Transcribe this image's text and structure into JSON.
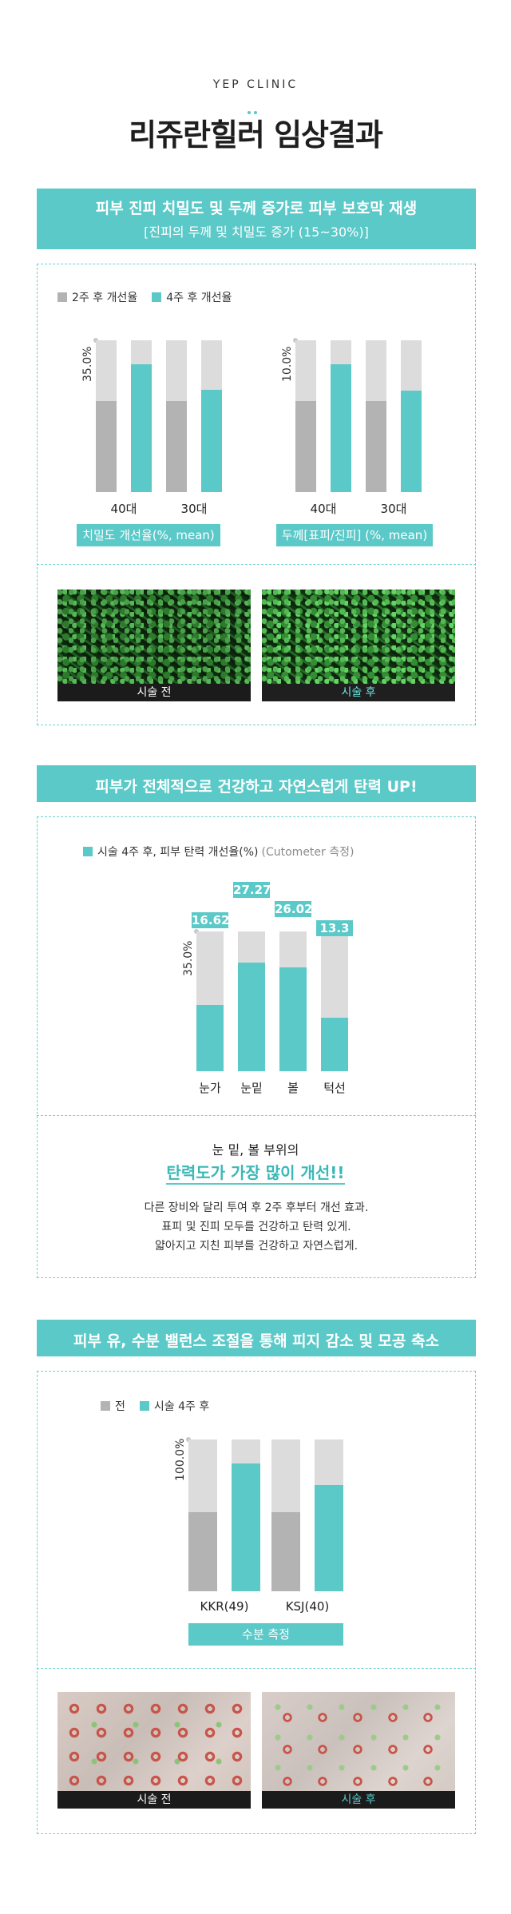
{
  "header": {
    "brand": "YEP CLINIC",
    "title": "리쥬란힐러 임상결과"
  },
  "section1": {
    "banner_line1": "피부 진피 치밀도 및 두께 증가로 피부 보호막 재생",
    "banner_line2": "[진피의 두께 및 치밀도 증가 (15~30%)]",
    "legend": [
      "2주 후 개선율",
      "4주 후 개선율"
    ],
    "before_label": "시술 전",
    "after_label": "시술 후"
  },
  "section2": {
    "banner": "피부가 전체적으로 건강하고 자연스럽게 탄력 UP!",
    "legend_label": "시술 4주 후, 피부 탄력 개선율(%)",
    "legend_note": "(Cutometer 측정)",
    "heading": "눈 밑, 볼 부위의",
    "highlight": "탄력도가 가장 많이 개선!!",
    "desc": [
      "다른 장비와 달리 투여 후 2주 후부터 개선 효과.",
      "표피 및 진피 모두를 건강하고 탄력 있게.",
      "얇아지고 지친 피부를 건강하고 자연스럽게."
    ]
  },
  "section3": {
    "banner": "피부 유, 수분 밸런스 조절을 통해 피지 감소 및 모공 축소",
    "legend": [
      "전",
      "시술 4주 후"
    ],
    "before_label": "시술 전",
    "after_label": "시술 후"
  },
  "colors": {
    "teal": "#5bc9c8",
    "gray": "#b3b3b3",
    "track": "#dcdcdc"
  },
  "chart_data": [
    {
      "type": "bar",
      "categories": [
        "40대",
        "30대"
      ],
      "series": [
        {
          "name": "2주 후 개선율",
          "values": [
            21,
            21
          ]
        },
        {
          "name": "4주 후 개선율",
          "values": [
            29.5,
            23.5
          ]
        }
      ],
      "ylabel": "35.0%",
      "ylim": [
        0,
        35
      ],
      "xlabel": "치밀도 개선율(%, mean)"
    },
    {
      "type": "bar",
      "categories": [
        "40대",
        "30대"
      ],
      "series": [
        {
          "name": "2주 후 개선율",
          "values": [
            6,
            6
          ]
        },
        {
          "name": "4주 후 개선율",
          "values": [
            8.4,
            6.7
          ]
        }
      ],
      "ylabel": "10.0%",
      "ylim": [
        0,
        10
      ],
      "xlabel": "두께[표피/진피] (%, mean)"
    },
    {
      "type": "bar",
      "categories": [
        "눈가",
        "눈밑",
        "볼",
        "턱선"
      ],
      "series": [
        {
          "name": "시술 4주 후, 피부 탄력 개선율(%)",
          "values": [
            16.62,
            27.27,
            26.02,
            13.3
          ]
        }
      ],
      "ylabel": "35.0%",
      "ylim": [
        0,
        35
      ],
      "data_labels": [
        "16.62",
        "27.27",
        "26.02",
        "13.3"
      ]
    },
    {
      "type": "bar",
      "categories": [
        "KKR(49)",
        "KSJ(40)"
      ],
      "series": [
        {
          "name": "전",
          "values": [
            52,
            52
          ]
        },
        {
          "name": "시술 4주 후",
          "values": [
            84,
            70
          ]
        }
      ],
      "ylabel": "100.0%",
      "ylim": [
        0,
        100
      ],
      "xlabel": "수분 측정"
    }
  ]
}
